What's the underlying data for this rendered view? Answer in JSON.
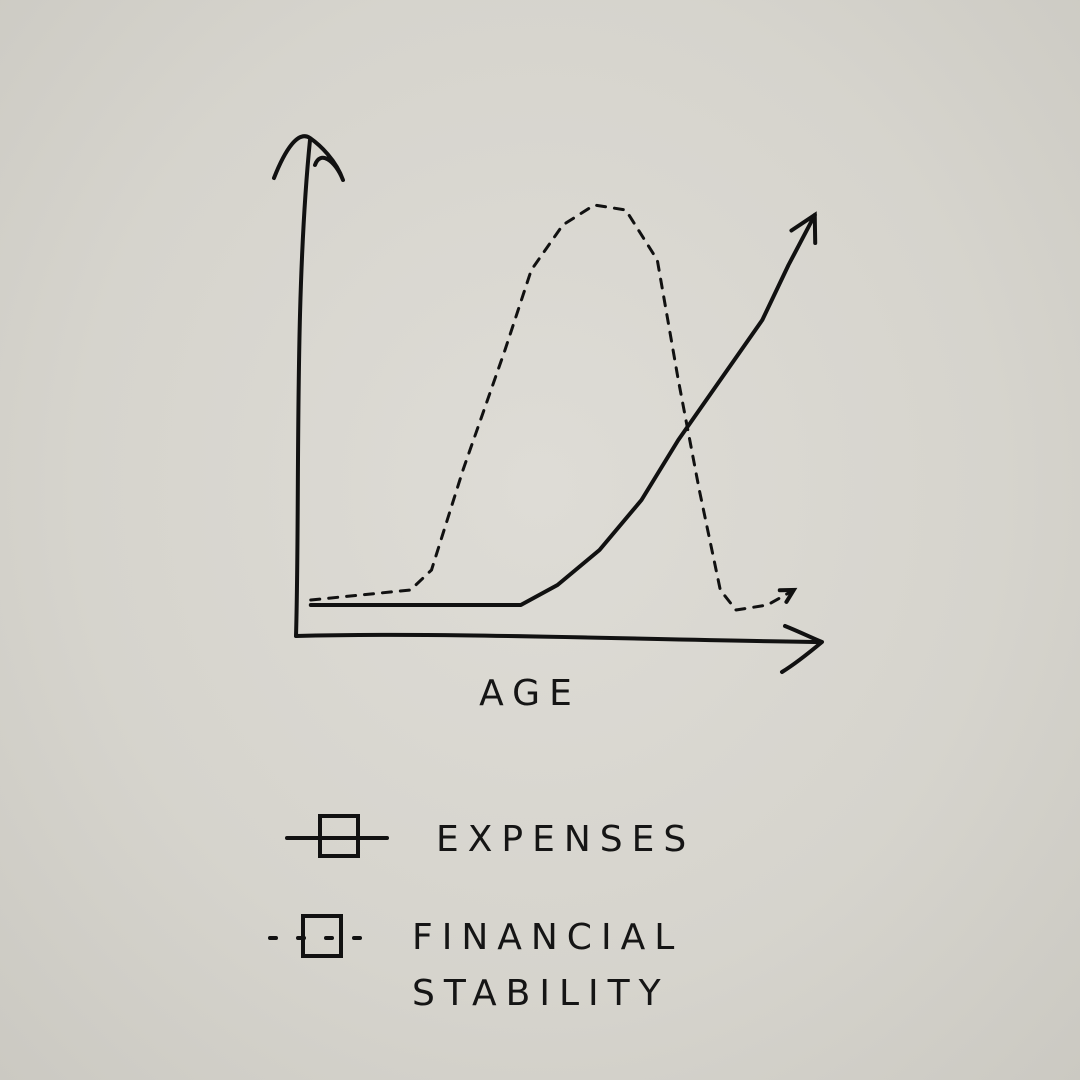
{
  "chart_data": {
    "type": "line",
    "x_label": "AGE",
    "xlim": [
      0,
      100
    ],
    "ylim": [
      0,
      100
    ],
    "series": [
      {
        "name": "EXPENSES",
        "color": "#111111",
        "style": "solid",
        "x": [
          3,
          24,
          43,
          50,
          58,
          66,
          73,
          81,
          89,
          94,
          99
        ],
        "values": [
          6,
          6,
          6,
          10,
          17,
          27,
          39,
          51,
          63,
          74,
          84
        ]
      },
      {
        "name": "FINANCIAL STABILITY",
        "color": "#111111",
        "style": "dashed",
        "x": [
          3,
          22,
          26,
          32,
          40,
          45,
          51,
          57,
          63,
          69,
          73,
          77,
          81,
          84,
          90,
          95
        ],
        "values": [
          7,
          9,
          13,
          33,
          57,
          73,
          82,
          86,
          85,
          75,
          51,
          29,
          9,
          5,
          6,
          9
        ]
      }
    ]
  }
}
